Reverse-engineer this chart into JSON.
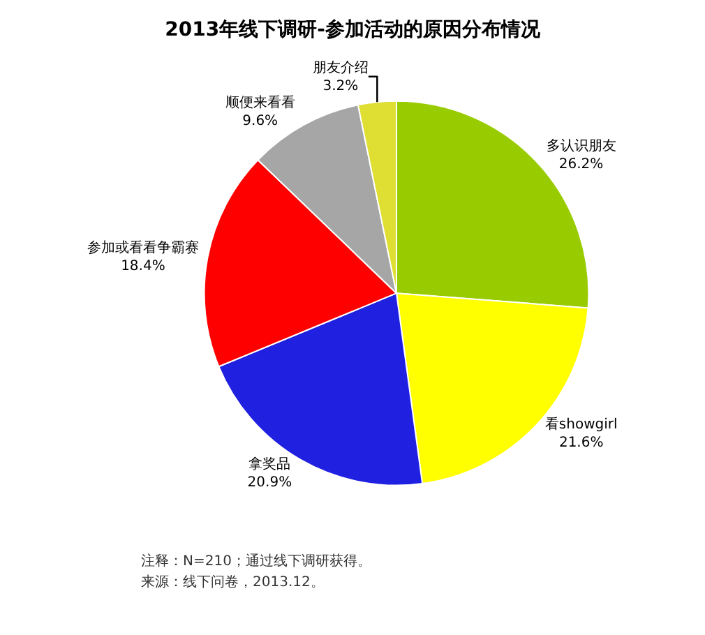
{
  "chart_data": {
    "type": "pie",
    "title": "2013年线下调研-参加活动的原因分布情况",
    "categories": [
      "多认识朋友",
      "看showgirl",
      "拿奖品",
      "参加或看看争霸赛",
      "顺便来看看",
      "朋友介绍"
    ],
    "values": [
      26.2,
      21.6,
      20.9,
      18.4,
      9.6,
      3.2
    ],
    "value_labels": [
      "26.2%",
      "21.6%",
      "20.9%",
      "18.4%",
      "9.6%",
      "3.2%"
    ],
    "colors": [
      "#99cc00",
      "#ffff00",
      "#2020e0",
      "#ff0000",
      "#a6a6a6",
      "#dede33"
    ],
    "legend": false,
    "annotations": [
      "注释：N=210；通过线下调研获得。",
      "来源：线下问卷，2013.12。"
    ]
  }
}
